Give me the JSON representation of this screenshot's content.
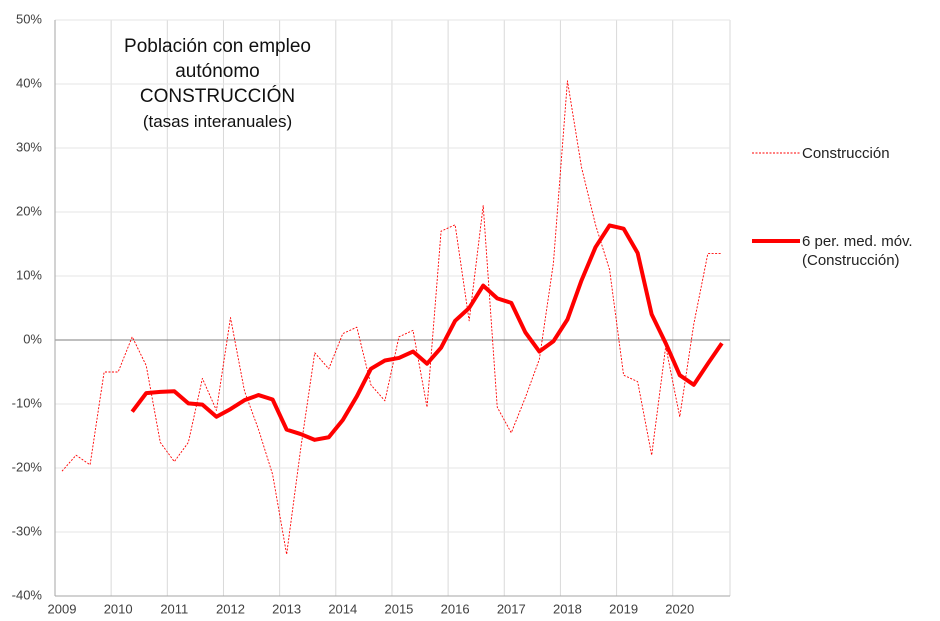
{
  "chart_data": {
    "type": "line",
    "title": [
      "Población con empleo autónomo",
      "CONSTRUCCIÓN"
    ],
    "subtitle": "(tasas interanuales)",
    "categories": [
      "2009",
      null,
      null,
      null,
      "2010",
      null,
      null,
      null,
      "2011",
      null,
      null,
      null,
      "2012",
      null,
      null,
      null,
      "2013",
      null,
      null,
      null,
      "2014",
      null,
      null,
      null,
      "2015",
      null,
      null,
      null,
      "2016",
      null,
      null,
      null,
      "2017",
      null,
      null,
      null,
      "2018",
      null,
      null,
      null,
      "2019",
      null,
      null,
      null,
      "2020",
      null,
      null,
      null
    ],
    "series": [
      {
        "name": "Construcción",
        "color": "#ff0000",
        "style": "dashed",
        "values": [
          -20.5,
          -18,
          -19.5,
          -5,
          -5,
          0.5,
          -4,
          -16,
          -19,
          -16,
          -6,
          -11,
          3.5,
          -8,
          -14,
          -21,
          -33.5,
          -17,
          -2,
          -4.5,
          1,
          2,
          -7,
          -9.5,
          0.5,
          1.5,
          -10.5,
          17,
          18,
          3,
          21,
          -10.5,
          -14.5,
          -9,
          -3,
          12,
          40.5,
          27,
          18,
          11,
          -5.5,
          -6.5,
          -18,
          -1,
          -12,
          2.5,
          13.5,
          13.5
        ]
      },
      {
        "name": "6 per. med. móv. (Construcción)",
        "color": "#ff0000",
        "style": "thick",
        "values": [
          null,
          null,
          null,
          null,
          null,
          -11.2,
          -8.3,
          -8.1,
          -8,
          -9.9,
          -10.1,
          -12,
          -10.8,
          -9.4,
          -8.6,
          -9.3,
          -14,
          -14.7,
          -15.6,
          -15.2,
          -12.5,
          -8.8,
          -4.5,
          -3.2,
          -2.8,
          -1.8,
          -3.7,
          -1.2,
          3,
          5,
          8.5,
          6.5,
          5.8,
          1.2,
          -1.8,
          -0.2,
          3.2,
          9.3,
          14.5,
          17.9,
          17.4,
          13.6,
          4,
          -0.5,
          -5.5,
          -7,
          -3.7,
          -0.5
        ]
      }
    ],
    "ylim": [
      -40,
      50
    ],
    "yticks": [
      {
        "value": -40,
        "label": "-40%"
      },
      {
        "value": -30,
        "label": "-30%"
      },
      {
        "value": -20,
        "label": "-20%"
      },
      {
        "value": -10,
        "label": "-10%"
      },
      {
        "value": 0,
        "label": "0%"
      },
      {
        "value": 10,
        "label": "10%"
      },
      {
        "value": 20,
        "label": "20%"
      },
      {
        "value": 30,
        "label": "30%"
      },
      {
        "value": 40,
        "label": "40%"
      },
      {
        "value": 50,
        "label": "50%"
      }
    ],
    "grid": true,
    "legend": "right"
  }
}
